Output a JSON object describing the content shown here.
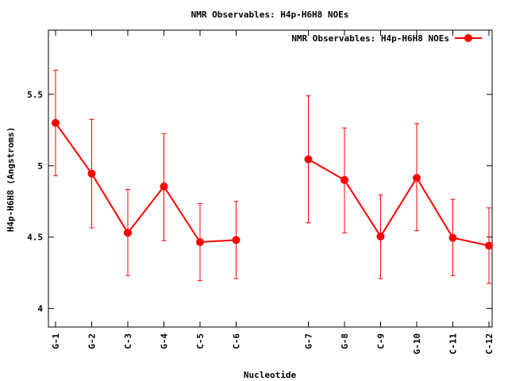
{
  "chart_data": {
    "type": "line",
    "title": "NMR Observables: H4p-H6H8 NOEs",
    "xlabel": "Nucleotide",
    "ylabel": "H4p-H6H8 (Angstroms)",
    "ylim": [
      3.87,
      5.95
    ],
    "yticks": [
      "4",
      "4.5",
      "5",
      "5.5"
    ],
    "ytick_values": [
      4,
      4.5,
      5,
      5.5
    ],
    "grid": false,
    "legend_position": "top-right",
    "series_color": "#ff0000",
    "segments": [
      {
        "categories": [
          "G-1",
          "G-2",
          "C-3",
          "G-4",
          "C-5",
          "C-6"
        ],
        "positions": [
          1,
          2,
          3,
          4,
          5,
          6
        ],
        "values": [
          5.3,
          4.945,
          4.53,
          4.855,
          4.465,
          4.48
        ],
        "err_low": [
          4.93,
          4.565,
          4.23,
          4.475,
          4.195,
          4.21
        ],
        "err_high": [
          5.67,
          5.325,
          4.835,
          5.225,
          4.735,
          4.75
        ]
      },
      {
        "categories": [
          "G-7",
          "G-8",
          "C-9",
          "G-10",
          "C-11",
          "C-12"
        ],
        "positions": [
          8,
          9,
          10,
          11,
          12,
          13
        ],
        "values": [
          5.045,
          4.9,
          4.505,
          4.915,
          4.495,
          4.44
        ],
        "err_low": [
          4.6,
          4.53,
          4.21,
          4.545,
          4.23,
          4.175
        ],
        "err_high": [
          5.49,
          5.265,
          4.795,
          5.295,
          4.765,
          4.705
        ]
      }
    ],
    "series": [
      {
        "name": "NMR Observables: H4p-H6H8 NOEs"
      }
    ]
  }
}
